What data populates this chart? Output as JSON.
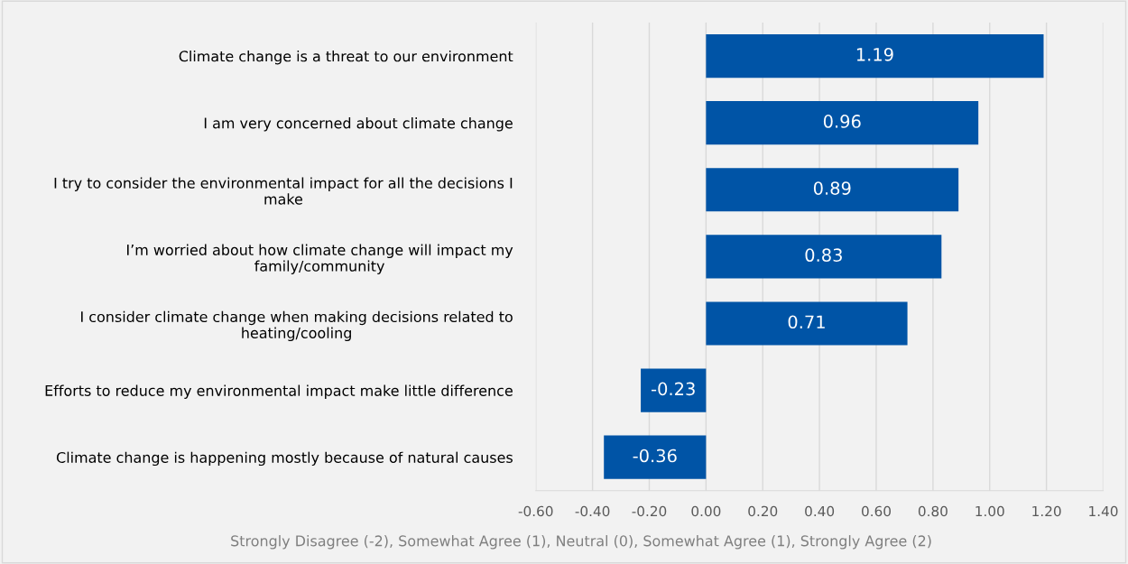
{
  "chart_data": {
    "type": "bar",
    "orientation": "horizontal",
    "categories": [
      "Climate change is a threat to our environment",
      "I am very concerned about climate change",
      "I try to consider the environmental impact for all the decisions I\nmake",
      "I’m worried about how climate change will impact my\nfamily/community",
      "I consider climate change when making decisions related to\nheating/cooling",
      "Efforts to reduce my environmental impact make little difference",
      "Climate change is happening mostly because of natural causes"
    ],
    "values": [
      1.19,
      0.96,
      0.89,
      0.83,
      0.71,
      -0.23,
      -0.36
    ],
    "color": "#0054a6",
    "xlabel": "Strongly Disagree (-2), Somewhat Agree (1), Neutral (0), Somewhat Agree (1), Strongly Agree (2)",
    "xlim": [
      -0.6,
      1.4
    ],
    "xticks": [
      {
        "value": -0.6,
        "label": "-0.60"
      },
      {
        "value": -0.4,
        "label": "-0.40"
      },
      {
        "value": -0.2,
        "label": "-0.20"
      },
      {
        "value": 0,
        "label": "0.00"
      },
      {
        "value": 0.2,
        "label": "0.20"
      },
      {
        "value": 0.4,
        "label": "0.40"
      },
      {
        "value": 0.6,
        "label": "0.60"
      },
      {
        "value": 0.8,
        "label": "0.80"
      },
      {
        "value": 1.0,
        "label": "1.00"
      },
      {
        "value": 1.2,
        "label": "1.20"
      },
      {
        "value": 1.4,
        "label": "1.40"
      }
    ],
    "grid": "x",
    "data_labels": true,
    "legend": false
  }
}
